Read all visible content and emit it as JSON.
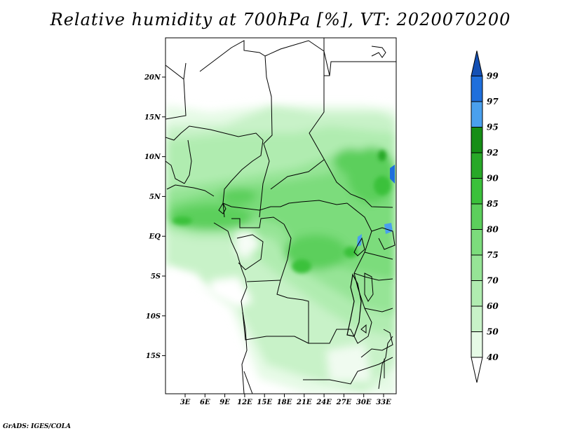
{
  "title": "Relative humidity at 700hPa [%], VT: 2020070200",
  "footer": "GrADS: IGES/COLA",
  "map": {
    "lat_ticks": [
      "20N",
      "15N",
      "10N",
      "5N",
      "EQ",
      "5S",
      "10S",
      "15S"
    ],
    "lon_ticks": [
      "3E",
      "6E",
      "9E",
      "12E",
      "15E",
      "18E",
      "21E",
      "24E",
      "27E",
      "30E",
      "33E"
    ],
    "lon_range": [
      0,
      35
    ],
    "lat_range": [
      -19,
      24
    ]
  },
  "colorbar": {
    "levels": [
      "40",
      "50",
      "60",
      "70",
      "75",
      "80",
      "85",
      "90",
      "92",
      "95",
      "97",
      "99"
    ],
    "colors": [
      "#ffffff",
      "#e6fae6",
      "#c8f2c8",
      "#b0ecb0",
      "#96e496",
      "#7cdc7c",
      "#5ccf5c",
      "#3bc13b",
      "#28a828",
      "#168e16",
      "#4aa0ee",
      "#1f6fdc",
      "#1450b4"
    ]
  }
}
